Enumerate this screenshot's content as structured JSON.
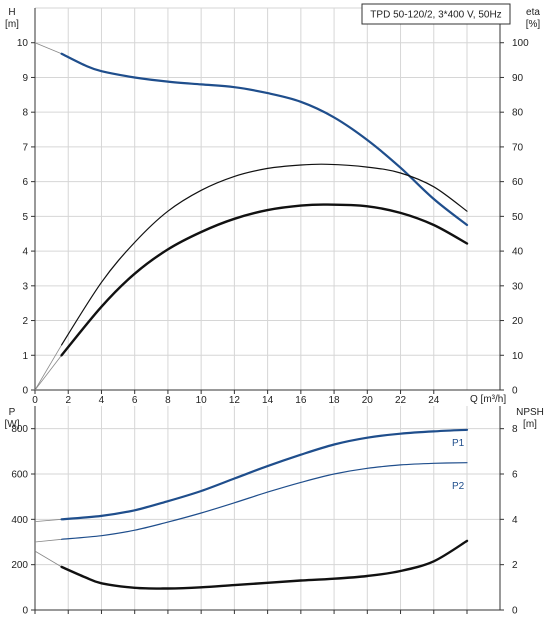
{
  "title_box": "TPD 50-120/2, 3*400 V, 50Hz",
  "colors": {
    "blue": "#1f4e8c",
    "black": "#111111",
    "grid": "#d6d6d6"
  },
  "chart_data": [
    {
      "type": "line",
      "x_label": "Q [m³/h]",
      "x_ticks": [
        "0",
        "2",
        "4",
        "6",
        "8",
        "10",
        "12",
        "14",
        "16",
        "18",
        "20",
        "22",
        "24"
      ],
      "xlim": [
        0,
        26
      ],
      "left_axis": {
        "label_line1": "H",
        "label_line2": "[m]",
        "ylim": [
          0,
          11
        ],
        "ticks": [
          "0",
          "1",
          "2",
          "3",
          "4",
          "5",
          "6",
          "7",
          "8",
          "9",
          "10"
        ]
      },
      "right_axis": {
        "label_line1": "eta",
        "label_line2": "[%]",
        "ylim": [
          0,
          110
        ],
        "ticks": [
          "0",
          "10",
          "20",
          "30",
          "40",
          "50",
          "60",
          "70",
          "80",
          "90",
          "100"
        ]
      },
      "series": [
        {
          "key": "H",
          "axis": "left",
          "color": "#1f4e8c",
          "width": 2.2,
          "points": [
            [
              1.6,
              9.68
            ],
            [
              3,
              9.35
            ],
            [
              4,
              9.18
            ],
            [
              6,
              9.0
            ],
            [
              8,
              8.88
            ],
            [
              10,
              8.8
            ],
            [
              12,
              8.72
            ],
            [
              14,
              8.55
            ],
            [
              16,
              8.3
            ],
            [
              18,
              7.85
            ],
            [
              20,
              7.2
            ],
            [
              22,
              6.4
            ],
            [
              24,
              5.5
            ],
            [
              26,
              4.75
            ]
          ]
        },
        {
          "key": "eta",
          "axis": "right",
          "color": "#111111",
          "width": 1.2,
          "points": [
            [
              1.6,
              13
            ],
            [
              4,
              31
            ],
            [
              6,
              42.5
            ],
            [
              8,
              51.5
            ],
            [
              10,
              57.5
            ],
            [
              12,
              61.5
            ],
            [
              14,
              63.8
            ],
            [
              16,
              64.8
            ],
            [
              17.6,
              65
            ],
            [
              20,
              64.2
            ],
            [
              22,
              62.5
            ],
            [
              24,
              58.5
            ],
            [
              26,
              51.5
            ]
          ]
        },
        {
          "key": "eta_total",
          "axis": "right",
          "color": "#111111",
          "width": 2.4,
          "points": [
            [
              1.6,
              10
            ],
            [
              4,
              24
            ],
            [
              6,
              33.5
            ],
            [
              8,
              40.5
            ],
            [
              10,
              45.5
            ],
            [
              12,
              49.3
            ],
            [
              14,
              51.8
            ],
            [
              16,
              53.1
            ],
            [
              17.6,
              53.4
            ],
            [
              20,
              52.9
            ],
            [
              22,
              51
            ],
            [
              24,
              47.5
            ],
            [
              26,
              42.2
            ]
          ]
        }
      ],
      "extrapolations": [
        {
          "axis": "left",
          "color": "#888888",
          "points": [
            [
              0,
              10.0
            ],
            [
              1.6,
              9.68
            ]
          ]
        },
        {
          "axis": "right",
          "color": "#888888",
          "points": [
            [
              0,
              0
            ],
            [
              1.6,
              13
            ]
          ]
        },
        {
          "axis": "right",
          "color": "#888888",
          "points": [
            [
              0,
              0
            ],
            [
              1.6,
              10
            ]
          ]
        }
      ]
    },
    {
      "type": "line",
      "xlim": [
        0,
        26
      ],
      "left_axis": {
        "label_line1": "P",
        "label_line2": "[W]",
        "ylim": [
          0,
          900
        ],
        "ticks": [
          "0",
          "200",
          "400",
          "600",
          "800"
        ]
      },
      "right_axis": {
        "label_line1": "NPSH",
        "label_line2": "[m]",
        "ylim": [
          0,
          9
        ],
        "ticks": [
          "0",
          "2",
          "4",
          "6",
          "8"
        ]
      },
      "series": [
        {
          "key": "P1",
          "name": "P1",
          "axis": "left",
          "color": "#1f4e8c",
          "width": 2.2,
          "points": [
            [
              1.6,
              400
            ],
            [
              4,
              415
            ],
            [
              6,
              440
            ],
            [
              8,
              480
            ],
            [
              10,
              525
            ],
            [
              12,
              580
            ],
            [
              14,
              635
            ],
            [
              16,
              685
            ],
            [
              18,
              730
            ],
            [
              20,
              760
            ],
            [
              22,
              778
            ],
            [
              24,
              788
            ],
            [
              26,
              795
            ]
          ]
        },
        {
          "key": "P2",
          "name": "P2",
          "axis": "left",
          "color": "#1f4e8c",
          "width": 1.2,
          "points": [
            [
              1.6,
              312
            ],
            [
              4,
              328
            ],
            [
              6,
              352
            ],
            [
              8,
              388
            ],
            [
              10,
              428
            ],
            [
              12,
              473
            ],
            [
              14,
              520
            ],
            [
              16,
              563
            ],
            [
              18,
              600
            ],
            [
              20,
              625
            ],
            [
              22,
              640
            ],
            [
              24,
              647
            ],
            [
              26,
              650
            ]
          ]
        },
        {
          "key": "NPSH",
          "axis": "right",
          "color": "#111111",
          "width": 2.4,
          "points": [
            [
              1.6,
              1.9
            ],
            [
              3,
              1.45
            ],
            [
              4,
              1.18
            ],
            [
              6,
              0.98
            ],
            [
              8,
              0.95
            ],
            [
              10,
              1.0
            ],
            [
              12,
              1.1
            ],
            [
              14,
              1.2
            ],
            [
              16,
              1.3
            ],
            [
              18,
              1.38
            ],
            [
              20,
              1.5
            ],
            [
              22,
              1.72
            ],
            [
              24,
              2.15
            ],
            [
              26,
              3.05
            ]
          ]
        }
      ],
      "extrapolations": [
        {
          "axis": "left",
          "color": "#888888",
          "points": [
            [
              0,
              390
            ],
            [
              1.6,
              400
            ]
          ]
        },
        {
          "axis": "left",
          "color": "#888888",
          "points": [
            [
              0,
              300
            ],
            [
              1.6,
              312
            ]
          ]
        },
        {
          "axis": "right",
          "color": "#888888",
          "points": [
            [
              0,
              2.6
            ],
            [
              1.6,
              1.9
            ]
          ]
        }
      ]
    }
  ]
}
